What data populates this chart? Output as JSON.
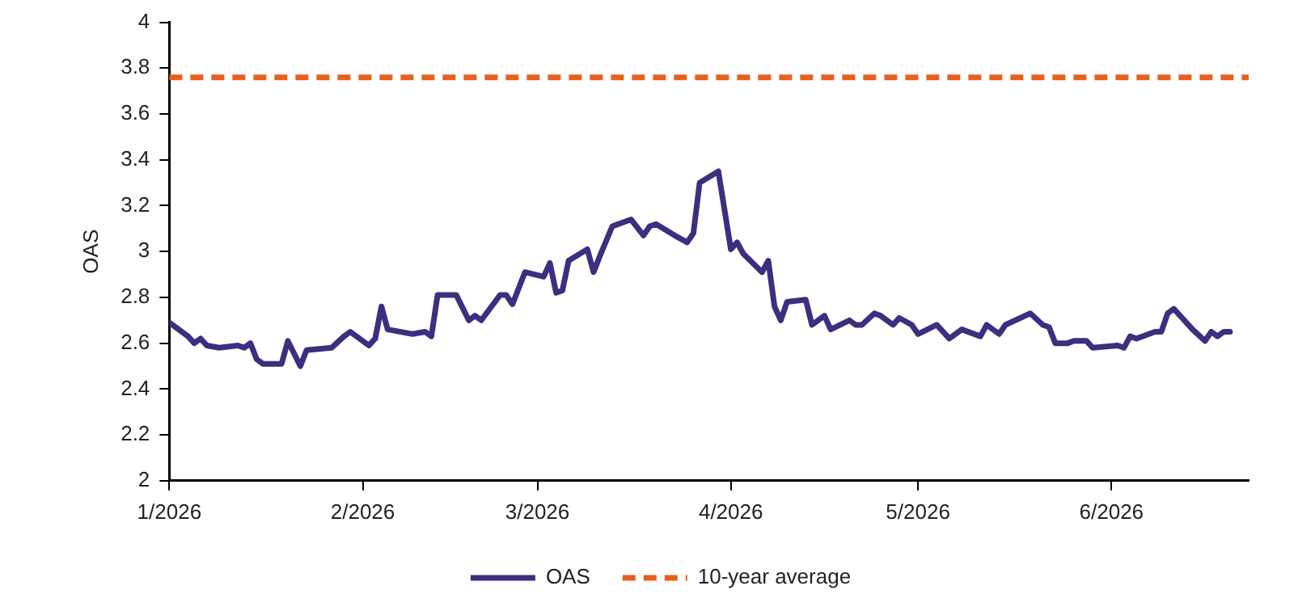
{
  "chart_data": {
    "type": "line",
    "ylabel": "OAS",
    "xlim": [
      "2026-01-01",
      "2026-06-23"
    ],
    "xticks": [
      {
        "value": "2026-01-01",
        "label": "1/2026"
      },
      {
        "value": "2026-02-01",
        "label": "2/2026"
      },
      {
        "value": "2026-03-01",
        "label": "3/2026"
      },
      {
        "value": "2026-04-01",
        "label": "4/2026"
      },
      {
        "value": "2026-05-01",
        "label": "5/2026"
      },
      {
        "value": "2026-06-01",
        "label": "6/2026"
      }
    ],
    "ylim": [
      2,
      4
    ],
    "yticks": [
      2,
      2.2,
      2.4,
      2.6,
      2.8,
      3,
      3.2,
      3.4,
      3.6,
      3.8,
      4
    ],
    "grid": false,
    "legend": "bottom",
    "marker": "none",
    "line_style": "solid",
    "series": [
      {
        "name": "OAS",
        "color": "#3b2f80",
        "x": [
          "2026-01-01",
          "2026-01-04",
          "2026-01-05",
          "2026-01-06",
          "2026-01-07",
          "2026-01-09",
          "2026-01-12",
          "2026-01-13",
          "2026-01-14",
          "2026-01-15",
          "2026-01-16",
          "2026-01-19",
          "2026-01-20",
          "2026-01-22",
          "2026-01-23",
          "2026-01-27",
          "2026-01-29",
          "2026-01-30",
          "2026-02-02",
          "2026-02-03",
          "2026-02-04",
          "2026-02-05",
          "2026-02-09",
          "2026-02-11",
          "2026-02-12",
          "2026-02-13",
          "2026-02-16",
          "2026-02-18",
          "2026-02-19",
          "2026-02-20",
          "2026-02-23",
          "2026-02-24",
          "2026-02-25",
          "2026-02-27",
          "2026-03-02",
          "2026-03-03",
          "2026-03-04",
          "2026-03-05",
          "2026-03-06",
          "2026-03-09",
          "2026-03-10",
          "2026-03-11",
          "2026-03-13",
          "2026-03-16",
          "2026-03-18",
          "2026-03-19",
          "2026-03-20",
          "2026-03-23",
          "2026-03-25",
          "2026-03-26",
          "2026-03-27",
          "2026-03-30",
          "2026-04-01",
          "2026-04-02",
          "2026-04-03",
          "2026-04-06",
          "2026-04-07",
          "2026-04-08",
          "2026-04-09",
          "2026-04-10",
          "2026-04-13",
          "2026-04-14",
          "2026-04-16",
          "2026-04-17",
          "2026-04-20",
          "2026-04-21",
          "2026-04-22",
          "2026-04-24",
          "2026-04-25",
          "2026-04-27",
          "2026-04-28",
          "2026-04-30",
          "2026-05-01",
          "2026-05-04",
          "2026-05-06",
          "2026-05-08",
          "2026-05-11",
          "2026-05-12",
          "2026-05-14",
          "2026-05-15",
          "2026-05-19",
          "2026-05-21",
          "2026-05-22",
          "2026-05-23",
          "2026-05-25",
          "2026-05-26",
          "2026-05-28",
          "2026-05-29",
          "2026-06-02",
          "2026-06-03",
          "2026-06-04",
          "2026-06-05",
          "2026-06-08",
          "2026-06-09",
          "2026-06-10",
          "2026-06-11",
          "2026-06-14",
          "2026-06-16",
          "2026-06-17",
          "2026-06-18",
          "2026-06-19",
          "2026-06-20"
        ],
        "values": [
          2.69,
          2.63,
          2.6,
          2.62,
          2.59,
          2.58,
          2.59,
          2.58,
          2.6,
          2.53,
          2.51,
          2.51,
          2.61,
          2.5,
          2.57,
          2.58,
          2.63,
          2.65,
          2.59,
          2.62,
          2.76,
          2.66,
          2.64,
          2.65,
          2.63,
          2.81,
          2.81,
          2.7,
          2.72,
          2.7,
          2.81,
          2.81,
          2.77,
          2.91,
          2.89,
          2.95,
          2.82,
          2.83,
          2.96,
          3.01,
          2.91,
          2.98,
          3.11,
          3.14,
          3.07,
          3.11,
          3.12,
          3.07,
          3.04,
          3.08,
          3.3,
          3.35,
          3.01,
          3.04,
          2.99,
          2.91,
          2.96,
          2.76,
          2.7,
          2.78,
          2.79,
          2.68,
          2.72,
          2.66,
          2.7,
          2.68,
          2.68,
          2.73,
          2.72,
          2.68,
          2.71,
          2.68,
          2.64,
          2.68,
          2.62,
          2.66,
          2.63,
          2.68,
          2.64,
          2.68,
          2.73,
          2.68,
          2.67,
          2.6,
          2.6,
          2.61,
          2.61,
          2.58,
          2.59,
          2.58,
          2.63,
          2.62,
          2.65,
          2.65,
          2.73,
          2.75,
          2.66,
          2.61,
          2.65,
          2.63,
          2.65,
          2.65
        ]
      }
    ],
    "ref_lines": [
      {
        "axis": "y",
        "value": 3.76,
        "label": "10-year average",
        "color": "#e8601c",
        "line_style": "dashed"
      }
    ]
  }
}
